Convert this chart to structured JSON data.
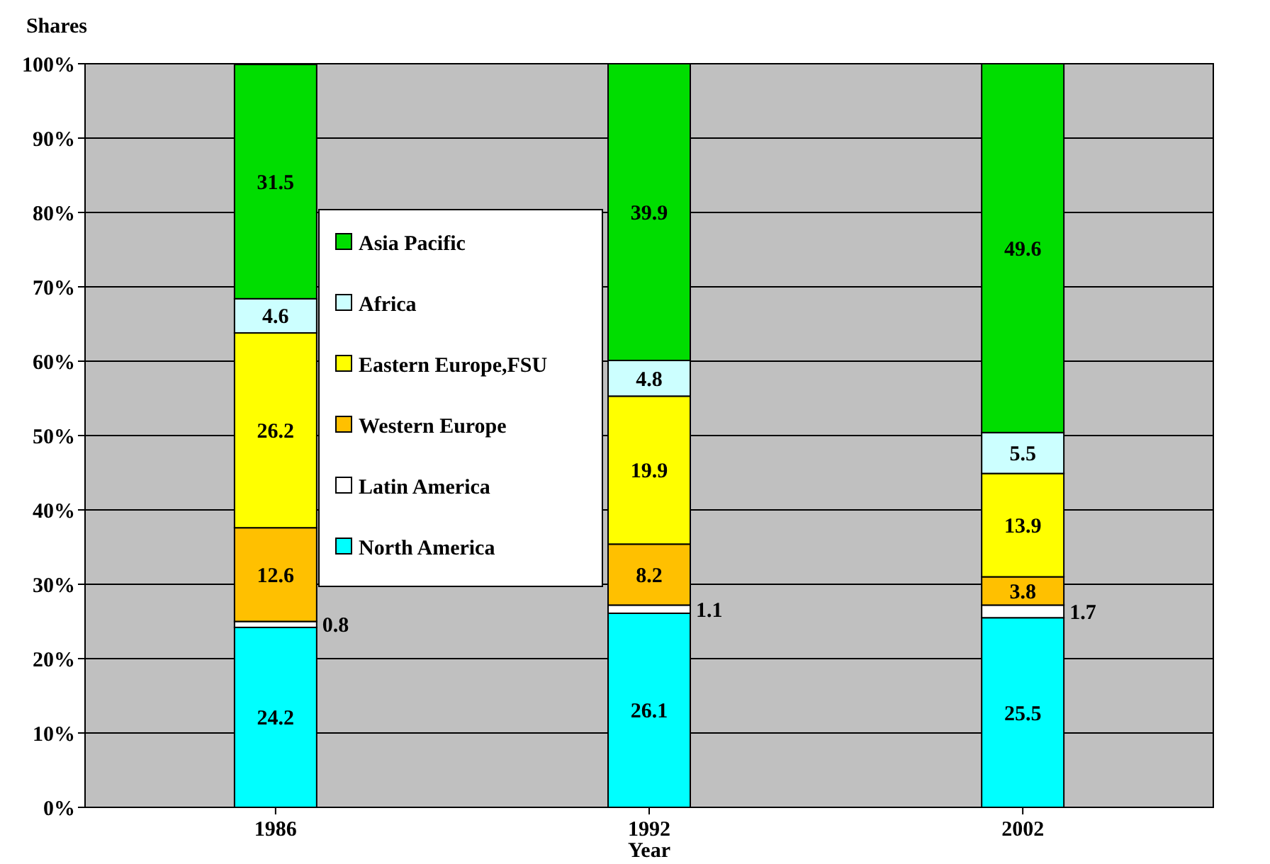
{
  "chart_data": {
    "type": "bar",
    "stacked": true,
    "ylabel": "Shares",
    "xlabel": "Year",
    "categories": [
      "1986",
      "1992",
      "2002"
    ],
    "series": [
      {
        "name": "North America",
        "color": "#00ffff",
        "values": [
          24.2,
          26.1,
          25.5
        ]
      },
      {
        "name": "Latin America",
        "color": "#ffffff",
        "values": [
          0.8,
          1.1,
          1.7
        ]
      },
      {
        "name": "Western Europe",
        "color": "#ffc000",
        "values": [
          12.6,
          8.2,
          3.8
        ]
      },
      {
        "name": "Eastern Europe,FSU",
        "color": "#ffff00",
        "values": [
          26.2,
          19.9,
          13.9
        ]
      },
      {
        "name": "Africa",
        "color": "#ccffff",
        "values": [
          4.6,
          4.8,
          5.5
        ]
      },
      {
        "name": "Asia Pacific",
        "color": "#00dd00",
        "values": [
          31.5,
          39.9,
          49.6
        ]
      }
    ],
    "ylim": [
      0,
      100
    ],
    "yticks": [
      {
        "value": 0,
        "label": "0%"
      },
      {
        "value": 10,
        "label": "10%"
      },
      {
        "value": 20,
        "label": "20%"
      },
      {
        "value": 30,
        "label": "30%"
      },
      {
        "value": 40,
        "label": "40%"
      },
      {
        "value": 50,
        "label": "50%"
      },
      {
        "value": 60,
        "label": "60%"
      },
      {
        "value": 70,
        "label": "70%"
      },
      {
        "value": 80,
        "label": "80%"
      },
      {
        "value": 90,
        "label": "90%"
      },
      {
        "value": 100,
        "label": "100%"
      }
    ],
    "grid": "y",
    "legend": "left",
    "data_labels": true
  }
}
